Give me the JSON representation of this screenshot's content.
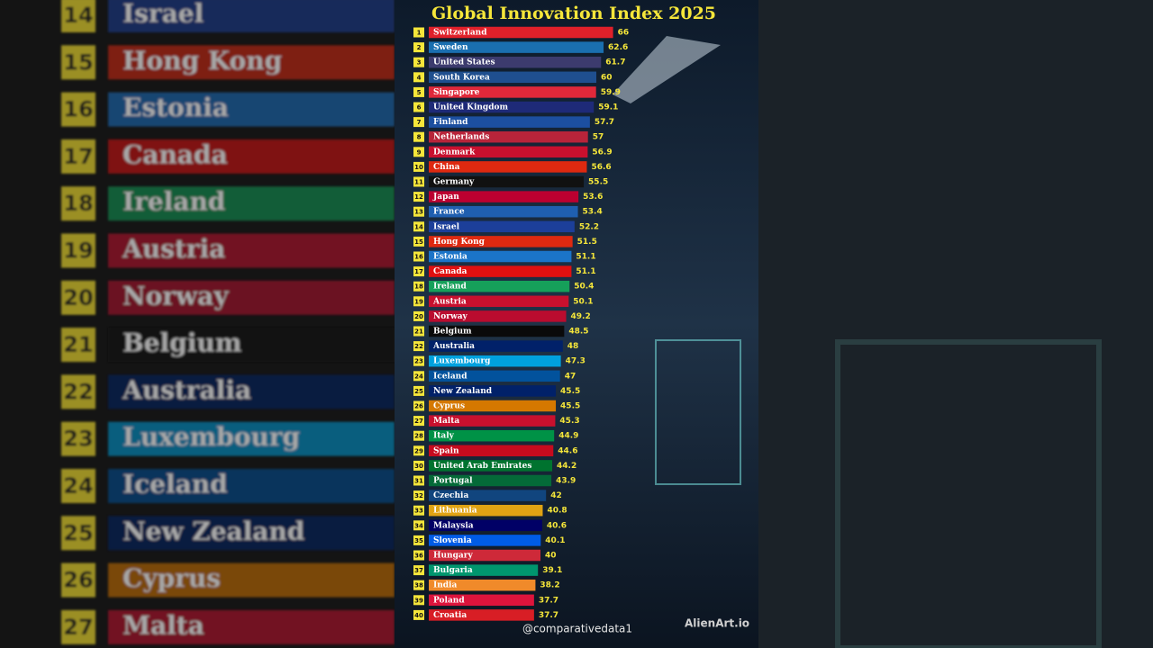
{
  "chart_data": {
    "type": "bar",
    "orientation": "horizontal",
    "title": "Global Innovation Index 2025",
    "ranks": [
      1,
      2,
      3,
      4,
      5,
      6,
      7,
      8,
      9,
      10,
      11,
      12,
      13,
      14,
      15,
      16,
      17,
      18,
      19,
      20,
      21,
      22,
      23,
      24,
      25,
      26,
      27,
      28,
      29,
      30,
      31,
      32,
      33,
      34,
      35,
      36,
      37,
      38,
      39,
      40
    ],
    "categories": [
      "Switzerland",
      "Sweden",
      "United States",
      "South Korea",
      "Singapore",
      "United Kingdom",
      "Finland",
      "Netherlands",
      "Denmark",
      "China",
      "Germany",
      "Japan",
      "France",
      "Israel",
      "Hong Kong",
      "Estonia",
      "Canada",
      "Ireland",
      "Austria",
      "Norway",
      "Belgium",
      "Australia",
      "Luxembourg",
      "Iceland",
      "New Zealand",
      "Cyprus",
      "Malta",
      "Italy",
      "Spain",
      "United Arab Emirates",
      "Portugal",
      "Czechia",
      "Lithuania",
      "Malaysia",
      "Slovenia",
      "Hungary",
      "Bulgaria",
      "India",
      "Poland",
      "Croatia"
    ],
    "values": [
      66,
      62.6,
      61.7,
      60,
      59.9,
      59.1,
      57.7,
      57,
      56.9,
      56.6,
      55.5,
      53.6,
      53.4,
      52.2,
      51.5,
      51.1,
      51.1,
      50.4,
      50.1,
      49.2,
      48.5,
      48,
      47.3,
      47,
      45.5,
      45.5,
      45.3,
      44.9,
      44.6,
      44.2,
      43.9,
      42,
      40.8,
      40.6,
      40.1,
      40,
      39.1,
      38.2,
      37.7,
      37.7
    ],
    "colors": [
      "#e0202a",
      "#1a6fb0",
      "#3c3b6e",
      "#1f4f8f",
      "#e0283a",
      "#1e2a78",
      "#1c4fa0",
      "#b8243a",
      "#c8102e",
      "#de2910",
      "#111111",
      "#bc0030",
      "#1f5fb0",
      "#1c3f9a",
      "#de2910",
      "#1b74c8",
      "#e01010",
      "#16a05a",
      "#c8102e",
      "#ba0c2f",
      "#0a0a0a",
      "#012169",
      "#00a1de",
      "#02529c",
      "#012169",
      "#d57800",
      "#c8102e",
      "#009246",
      "#c60b1e",
      "#00732f",
      "#046a38",
      "#11457e",
      "#e0a313",
      "#010066",
      "#005ce6",
      "#ce2939",
      "#00966e",
      "#f08a2a",
      "#dc143c",
      "#d81e25"
    ]
  },
  "credits": {
    "handle": "@comparativedata1",
    "brand": "AlienArt.io"
  }
}
